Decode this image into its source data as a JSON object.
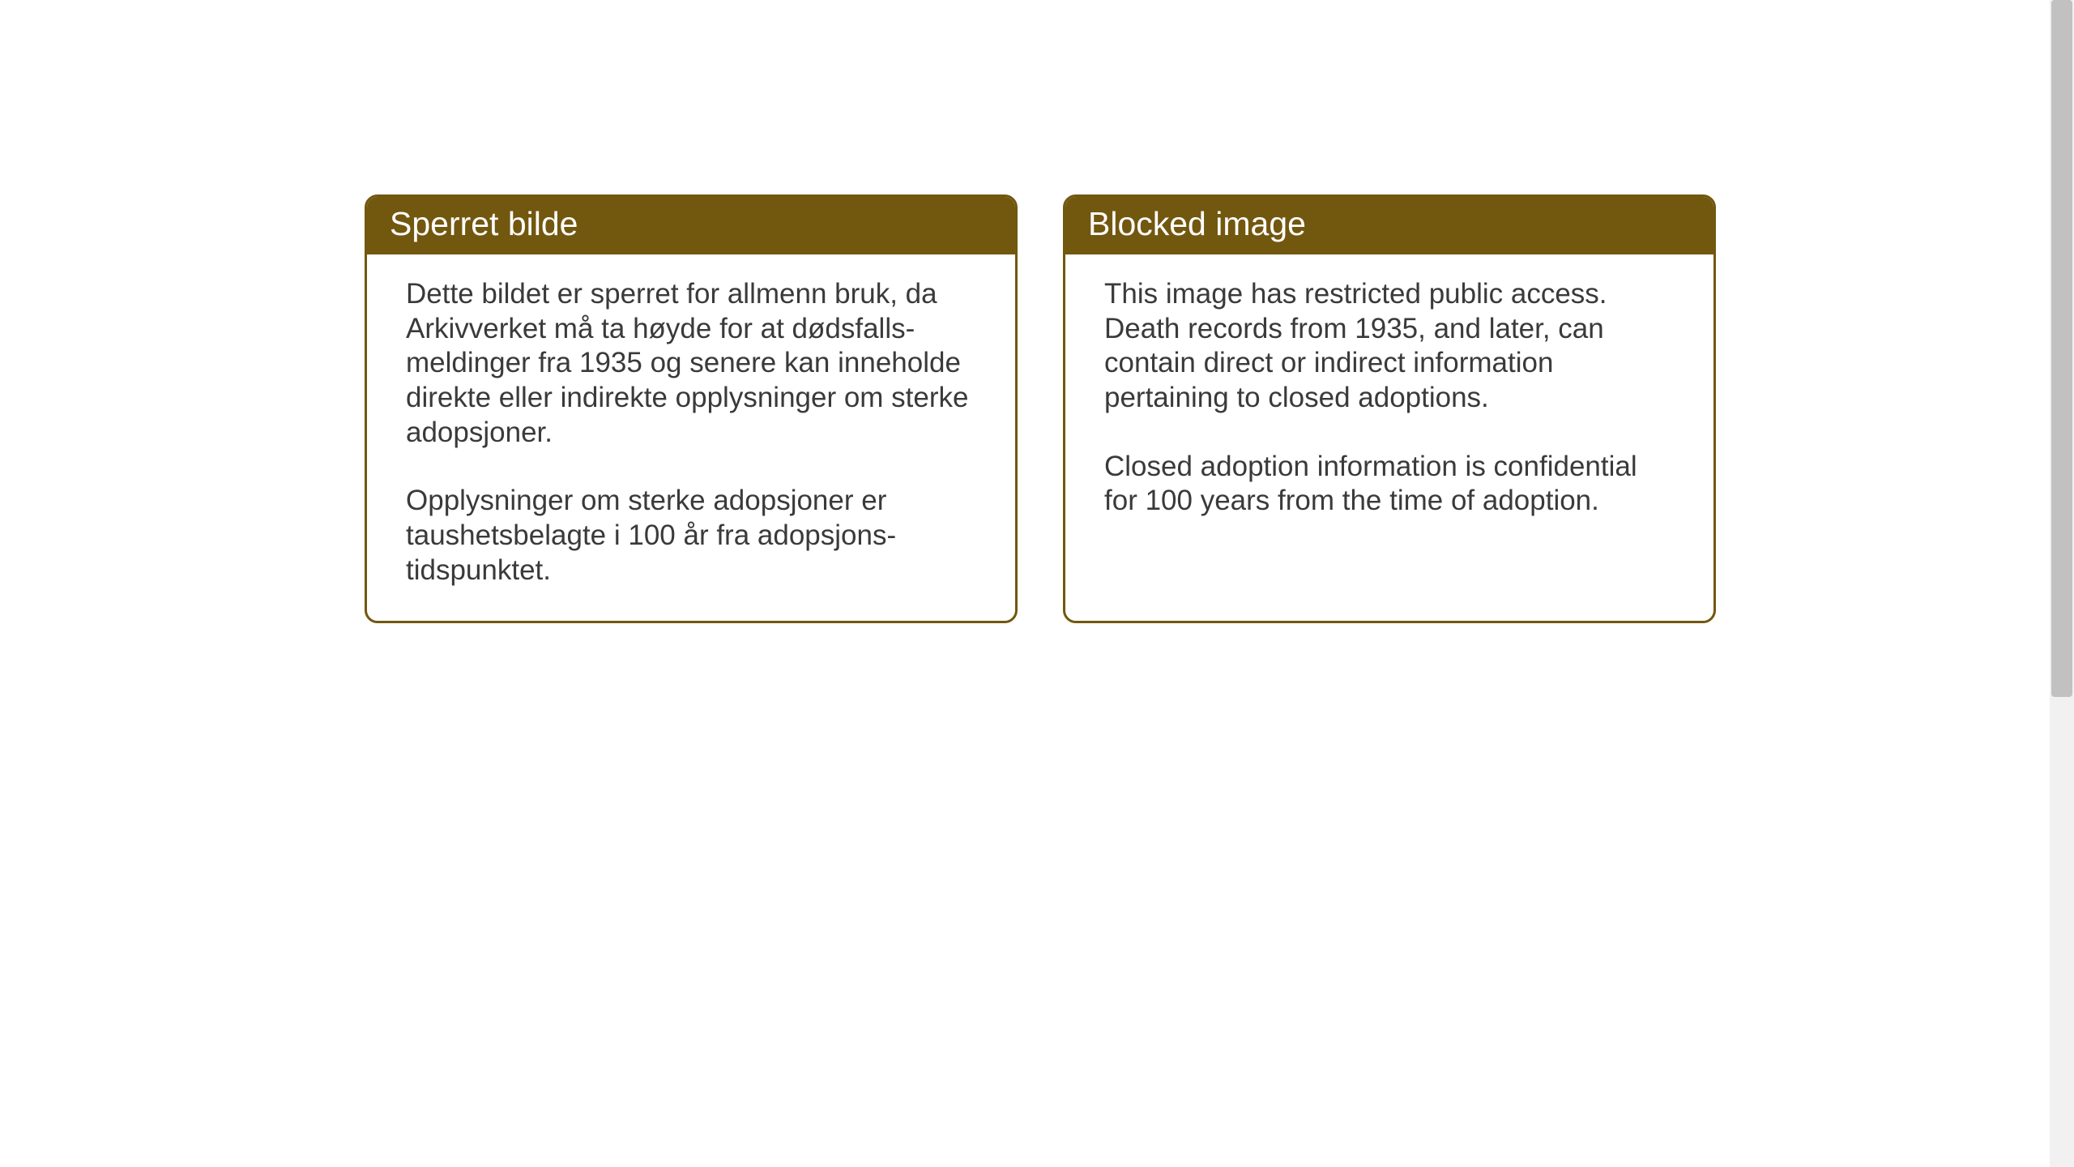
{
  "page": {
    "background_color": "#ffffff"
  },
  "cards": {
    "norwegian": {
      "header": "Sperret bilde",
      "paragraph1": "Dette bildet er sperret for allmenn bruk, da Arkivverket må ta høyde for at dødsfalls-meldinger fra 1935 og senere kan inneholde direkte eller indirekte opplysninger om sterke adopsjoner.",
      "paragraph2": "Opplysninger om sterke adopsjoner er taushetsbelagte i 100 år fra adopsjons-tidspunktet."
    },
    "english": {
      "header": "Blocked image",
      "paragraph1": "This image has restricted public access. Death records from 1935, and later, can contain direct or indirect information pertaining to closed adoptions.",
      "paragraph2": "Closed adoption information is confidential for 100 years from the time of adoption."
    }
  },
  "styling": {
    "card_border_color": "#72570f",
    "card_header_bg": "#72570f",
    "card_header_text_color": "#ffffff",
    "card_body_text_color": "#3a3a3a",
    "card_border_radius": 16,
    "card_border_width": 3,
    "header_fontsize": 41,
    "body_fontsize": 35,
    "scrollbar_track_color": "#f1f1f1",
    "scrollbar_thumb_color": "#c1c1c1"
  }
}
